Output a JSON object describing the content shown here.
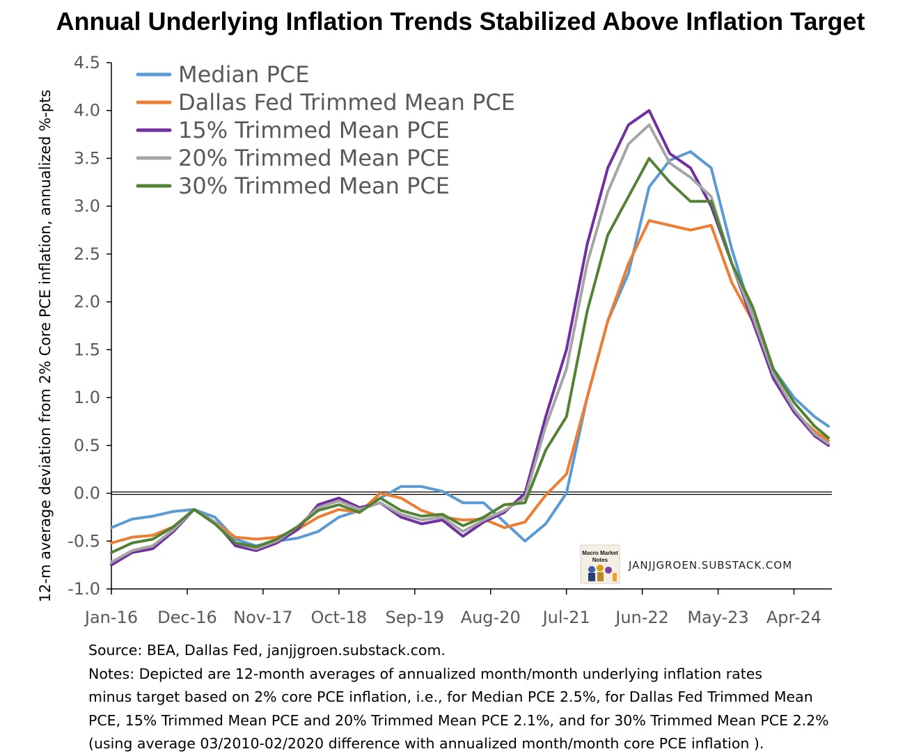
{
  "title": "Annual Underlying Inflation Trends Stabilized Above Inflation Target",
  "chart_data": {
    "type": "line",
    "title": "Annual Underlying Inflation Trends Stabilized Above Inflation Target",
    "ylabel": "12-m average deviation from 2% Core PCE inflation, annualized %-pts",
    "xlabel": "",
    "ylim": [
      -1.0,
      4.5
    ],
    "y_ticks": [
      "4.5",
      "4.0",
      "3.5",
      "3.0",
      "2.5",
      "2.0",
      "1.5",
      "1.0",
      "0.5",
      "0.0",
      "-0.5",
      "-1.0"
    ],
    "x_tick_labels": [
      "Jan-16",
      "Dec-16",
      "Nov-17",
      "Oct-18",
      "Sep-19",
      "Aug-20",
      "Jul-21",
      "Jun-22",
      "May-23",
      "Apr-24"
    ],
    "x_range": [
      "Jan-16",
      "Sep-24"
    ],
    "grid": false,
    "legend_position": "top-left",
    "reference_line": 0.0,
    "series": [
      {
        "name": "Median PCE",
        "color": "#5B9BD5",
        "points": [
          [
            "Jan-16",
            -0.36
          ],
          [
            "Apr-16",
            -0.27
          ],
          [
            "Jul-16",
            -0.24
          ],
          [
            "Oct-16",
            -0.19
          ],
          [
            "Jan-17",
            -0.17
          ],
          [
            "Apr-17",
            -0.25
          ],
          [
            "Jul-17",
            -0.48
          ],
          [
            "Oct-17",
            -0.55
          ],
          [
            "Jan-18",
            -0.5
          ],
          [
            "Apr-18",
            -0.47
          ],
          [
            "Jul-18",
            -0.4
          ],
          [
            "Oct-18",
            -0.25
          ],
          [
            "Jan-19",
            -0.18
          ],
          [
            "Apr-19",
            -0.05
          ],
          [
            "Jul-19",
            0.07
          ],
          [
            "Oct-19",
            0.07
          ],
          [
            "Jan-20",
            0.02
          ],
          [
            "Apr-20",
            -0.1
          ],
          [
            "Jul-20",
            -0.1
          ],
          [
            "Oct-20",
            -0.3
          ],
          [
            "Jan-21",
            -0.5
          ],
          [
            "Apr-21",
            -0.32
          ],
          [
            "Jul-21",
            0.0
          ],
          [
            "Oct-21",
            1.0
          ],
          [
            "Jan-22",
            1.8
          ],
          [
            "Apr-22",
            2.3
          ],
          [
            "Jul-22",
            3.2
          ],
          [
            "Oct-22",
            3.48
          ],
          [
            "Jan-23",
            3.57
          ],
          [
            "Apr-23",
            3.4
          ],
          [
            "Jul-23",
            2.55
          ],
          [
            "Oct-23",
            1.85
          ],
          [
            "Jan-24",
            1.3
          ],
          [
            "Apr-24",
            1.0
          ],
          [
            "Jul-24",
            0.8
          ],
          [
            "Sep-24",
            0.7
          ]
        ]
      },
      {
        "name": "Dallas Fed Trimmed Mean PCE",
        "color": "#ED7D31",
        "points": [
          [
            "Jan-16",
            -0.52
          ],
          [
            "Apr-16",
            -0.46
          ],
          [
            "Jul-16",
            -0.44
          ],
          [
            "Oct-16",
            -0.35
          ],
          [
            "Jan-17",
            -0.17
          ],
          [
            "Apr-17",
            -0.3
          ],
          [
            "Jul-17",
            -0.46
          ],
          [
            "Oct-17",
            -0.48
          ],
          [
            "Jan-18",
            -0.46
          ],
          [
            "Apr-18",
            -0.38
          ],
          [
            "Jul-18",
            -0.25
          ],
          [
            "Oct-18",
            -0.17
          ],
          [
            "Jan-19",
            -0.2
          ],
          [
            "Apr-19",
            0.0
          ],
          [
            "Jul-19",
            -0.05
          ],
          [
            "Oct-19",
            -0.18
          ],
          [
            "Jan-20",
            -0.25
          ],
          [
            "Apr-20",
            -0.28
          ],
          [
            "Jul-20",
            -0.27
          ],
          [
            "Oct-20",
            -0.36
          ],
          [
            "Jan-21",
            -0.3
          ],
          [
            "Apr-21",
            -0.02
          ],
          [
            "Jul-21",
            0.2
          ],
          [
            "Oct-21",
            1.0
          ],
          [
            "Jan-22",
            1.8
          ],
          [
            "Apr-22",
            2.4
          ],
          [
            "Jul-22",
            2.85
          ],
          [
            "Oct-22",
            2.8
          ],
          [
            "Jan-23",
            2.75
          ],
          [
            "Apr-23",
            2.8
          ],
          [
            "Jul-23",
            2.2
          ],
          [
            "Oct-23",
            1.8
          ],
          [
            "Jan-24",
            1.25
          ],
          [
            "Apr-24",
            0.85
          ],
          [
            "Jul-24",
            0.65
          ],
          [
            "Sep-24",
            0.55
          ]
        ]
      },
      {
        "name": "15% Trimmed Mean PCE",
        "color": "#7030A0",
        "points": [
          [
            "Jan-16",
            -0.75
          ],
          [
            "Apr-16",
            -0.62
          ],
          [
            "Jul-16",
            -0.58
          ],
          [
            "Oct-16",
            -0.4
          ],
          [
            "Jan-17",
            -0.17
          ],
          [
            "Apr-17",
            -0.3
          ],
          [
            "Jul-17",
            -0.55
          ],
          [
            "Oct-17",
            -0.6
          ],
          [
            "Jan-18",
            -0.52
          ],
          [
            "Apr-18",
            -0.38
          ],
          [
            "Jul-18",
            -0.12
          ],
          [
            "Oct-18",
            -0.05
          ],
          [
            "Jan-19",
            -0.15
          ],
          [
            "Apr-19",
            -0.1
          ],
          [
            "Jul-19",
            -0.25
          ],
          [
            "Oct-19",
            -0.32
          ],
          [
            "Jan-20",
            -0.28
          ],
          [
            "Apr-20",
            -0.45
          ],
          [
            "Jul-20",
            -0.3
          ],
          [
            "Oct-20",
            -0.2
          ],
          [
            "Jan-21",
            0.0
          ],
          [
            "Apr-21",
            0.8
          ],
          [
            "Jul-21",
            1.5
          ],
          [
            "Oct-21",
            2.6
          ],
          [
            "Jan-22",
            3.4
          ],
          [
            "Apr-22",
            3.85
          ],
          [
            "Jul-22",
            4.0
          ],
          [
            "Oct-22",
            3.55
          ],
          [
            "Jan-23",
            3.4
          ],
          [
            "Apr-23",
            3.0
          ],
          [
            "Jul-23",
            2.4
          ],
          [
            "Oct-23",
            1.8
          ],
          [
            "Jan-24",
            1.2
          ],
          [
            "Apr-24",
            0.85
          ],
          [
            "Jul-24",
            0.6
          ],
          [
            "Sep-24",
            0.5
          ]
        ]
      },
      {
        "name": "20% Trimmed Mean PCE",
        "color": "#A5A5A5",
        "points": [
          [
            "Jan-16",
            -0.72
          ],
          [
            "Apr-16",
            -0.6
          ],
          [
            "Jul-16",
            -0.55
          ],
          [
            "Oct-16",
            -0.38
          ],
          [
            "Jan-17",
            -0.17
          ],
          [
            "Apr-17",
            -0.3
          ],
          [
            "Jul-17",
            -0.52
          ],
          [
            "Oct-17",
            -0.58
          ],
          [
            "Jan-18",
            -0.5
          ],
          [
            "Apr-18",
            -0.35
          ],
          [
            "Jul-18",
            -0.15
          ],
          [
            "Oct-18",
            -0.08
          ],
          [
            "Jan-19",
            -0.17
          ],
          [
            "Apr-19",
            -0.1
          ],
          [
            "Jul-19",
            -0.22
          ],
          [
            "Oct-19",
            -0.28
          ],
          [
            "Jan-20",
            -0.25
          ],
          [
            "Apr-20",
            -0.4
          ],
          [
            "Jul-20",
            -0.28
          ],
          [
            "Oct-20",
            -0.18
          ],
          [
            "Jan-21",
            -0.05
          ],
          [
            "Apr-21",
            0.7
          ],
          [
            "Jul-21",
            1.3
          ],
          [
            "Oct-21",
            2.4
          ],
          [
            "Jan-22",
            3.15
          ],
          [
            "Apr-22",
            3.65
          ],
          [
            "Jul-22",
            3.85
          ],
          [
            "Oct-22",
            3.45
          ],
          [
            "Jan-23",
            3.3
          ],
          [
            "Apr-23",
            3.1
          ],
          [
            "Jul-23",
            2.4
          ],
          [
            "Oct-23",
            1.85
          ],
          [
            "Jan-24",
            1.25
          ],
          [
            "Apr-24",
            0.88
          ],
          [
            "Jul-24",
            0.62
          ],
          [
            "Sep-24",
            0.52
          ]
        ]
      },
      {
        "name": "30% Trimmed Mean PCE",
        "color": "#548235",
        "points": [
          [
            "Jan-16",
            -0.62
          ],
          [
            "Apr-16",
            -0.52
          ],
          [
            "Jul-16",
            -0.48
          ],
          [
            "Oct-16",
            -0.35
          ],
          [
            "Jan-17",
            -0.17
          ],
          [
            "Apr-17",
            -0.32
          ],
          [
            "Jul-17",
            -0.52
          ],
          [
            "Oct-17",
            -0.56
          ],
          [
            "Jan-18",
            -0.48
          ],
          [
            "Apr-18",
            -0.35
          ],
          [
            "Jul-18",
            -0.18
          ],
          [
            "Oct-18",
            -0.12
          ],
          [
            "Jan-19",
            -0.2
          ],
          [
            "Apr-19",
            -0.05
          ],
          [
            "Jul-19",
            -0.18
          ],
          [
            "Oct-19",
            -0.24
          ],
          [
            "Jan-20",
            -0.22
          ],
          [
            "Apr-20",
            -0.34
          ],
          [
            "Jul-20",
            -0.25
          ],
          [
            "Oct-20",
            -0.12
          ],
          [
            "Jan-21",
            -0.1
          ],
          [
            "Apr-21",
            0.45
          ],
          [
            "Jul-21",
            0.8
          ],
          [
            "Oct-21",
            1.9
          ],
          [
            "Jan-22",
            2.7
          ],
          [
            "Apr-22",
            3.1
          ],
          [
            "Jul-22",
            3.5
          ],
          [
            "Oct-22",
            3.25
          ],
          [
            "Jan-23",
            3.05
          ],
          [
            "Apr-23",
            3.05
          ],
          [
            "Jul-23",
            2.4
          ],
          [
            "Oct-23",
            1.95
          ],
          [
            "Jan-24",
            1.3
          ],
          [
            "Apr-24",
            0.95
          ],
          [
            "Jul-24",
            0.7
          ],
          [
            "Sep-24",
            0.58
          ]
        ]
      }
    ]
  },
  "credit": {
    "logo_text": [
      "Macro Market",
      "Notes"
    ],
    "site": "JANJJGROEN.SUBSTACK.COM"
  },
  "notes": {
    "source": "Source: BEA, Dallas Fed, janjjgroen.substack.com.",
    "line1": "Notes: Depicted are 12-month averages of annualized month/month underlying inflation rates",
    "line2": "minus target based on 2% core PCE inflation, i.e., for Median PCE 2.5%, for Dallas Fed Trimmed Mean",
    "line3": "PCE, 15% Trimmed Mean PCE and 20% Trimmed Mean PCE 2.1%, and for 30% Trimmed Mean PCE 2.2%",
    "line4": "(using average 03/2010-02/2020 difference with annualized month/month core PCE inflation )."
  }
}
